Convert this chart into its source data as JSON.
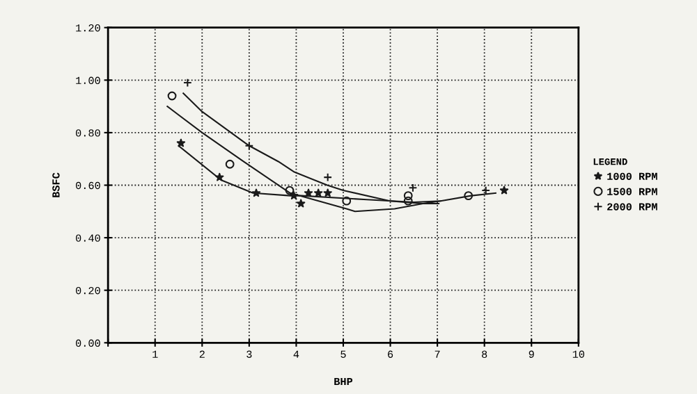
{
  "chart_data": {
    "type": "scatter",
    "xlabel": "BHP",
    "ylabel": "BSFC",
    "legend_title": "LEGEND",
    "xlim": [
      0,
      10
    ],
    "ylim": [
      0,
      1.2
    ],
    "xticks": [
      {
        "value": 0,
        "label": null
      },
      1,
      2,
      3,
      4,
      5,
      6,
      7,
      8,
      9,
      10
    ],
    "yticks": [
      {
        "value": 0,
        "label": "0.00"
      },
      {
        "value": 0.2,
        "label": "0.20"
      },
      {
        "value": 0.4,
        "label": "0.40"
      },
      {
        "value": 0.6,
        "label": "0.60"
      },
      {
        "value": 0.8,
        "label": "0.80"
      },
      {
        "value": 1.0,
        "label": "1.00"
      },
      {
        "value": 1.2,
        "label": "1.20"
      }
    ],
    "grid": true,
    "legend": "right",
    "series": [
      {
        "name": "1000 RPM",
        "marker": "star",
        "color": "#1a1a1a",
        "x": [
          1.55,
          2.37,
          3.15,
          3.95,
          4.1,
          4.26,
          4.47,
          4.67,
          8.42
        ],
        "values": [
          0.76,
          0.63,
          0.57,
          0.56,
          0.53,
          0.57,
          0.57,
          0.57,
          0.58
        ]
      },
      {
        "name": "1500 RPM",
        "marker": "circle",
        "color": "#1a1a1a",
        "x": [
          1.36,
          2.59,
          3.86,
          5.07,
          6.38,
          6.38,
          7.66
        ],
        "values": [
          0.94,
          0.68,
          0.58,
          0.54,
          0.56,
          0.54,
          0.56
        ]
      },
      {
        "name": "2000 RPM",
        "marker": "cross",
        "color": "#1a1a1a",
        "x": [
          1.69,
          3.0,
          4.67,
          6.48,
          8.03
        ],
        "values": [
          0.99,
          0.75,
          0.63,
          0.59,
          0.58
        ]
      },
      {
        "type": "line",
        "marker": "none",
        "color": "#1a1a1a",
        "x": [
          1.5,
          2.4,
          3.08,
          3.87,
          4.11,
          5.5,
          6.5,
          7.07,
          7.72,
          8.24
        ],
        "values": [
          0.75,
          0.62,
          0.57,
          0.56,
          0.56,
          0.545,
          0.535,
          0.54,
          0.56,
          0.57
        ]
      },
      {
        "type": "line",
        "marker": "none",
        "color": "#1a1a1a",
        "x": [
          1.26,
          2.0,
          2.88,
          3.87,
          5.07,
          5.25,
          6.09,
          6.69,
          7.07
        ],
        "values": [
          0.9,
          0.8,
          0.69,
          0.57,
          0.51,
          0.5,
          0.51,
          0.53,
          0.54
        ]
      },
      {
        "type": "line",
        "marker": "none",
        "color": "#1a1a1a",
        "x": [
          1.6,
          2.0,
          3.0,
          3.62,
          3.96,
          4.66,
          5.0,
          5.99,
          6.69,
          7.03
        ],
        "values": [
          0.95,
          0.88,
          0.75,
          0.69,
          0.65,
          0.6,
          0.58,
          0.54,
          0.53,
          0.53
        ]
      }
    ]
  }
}
